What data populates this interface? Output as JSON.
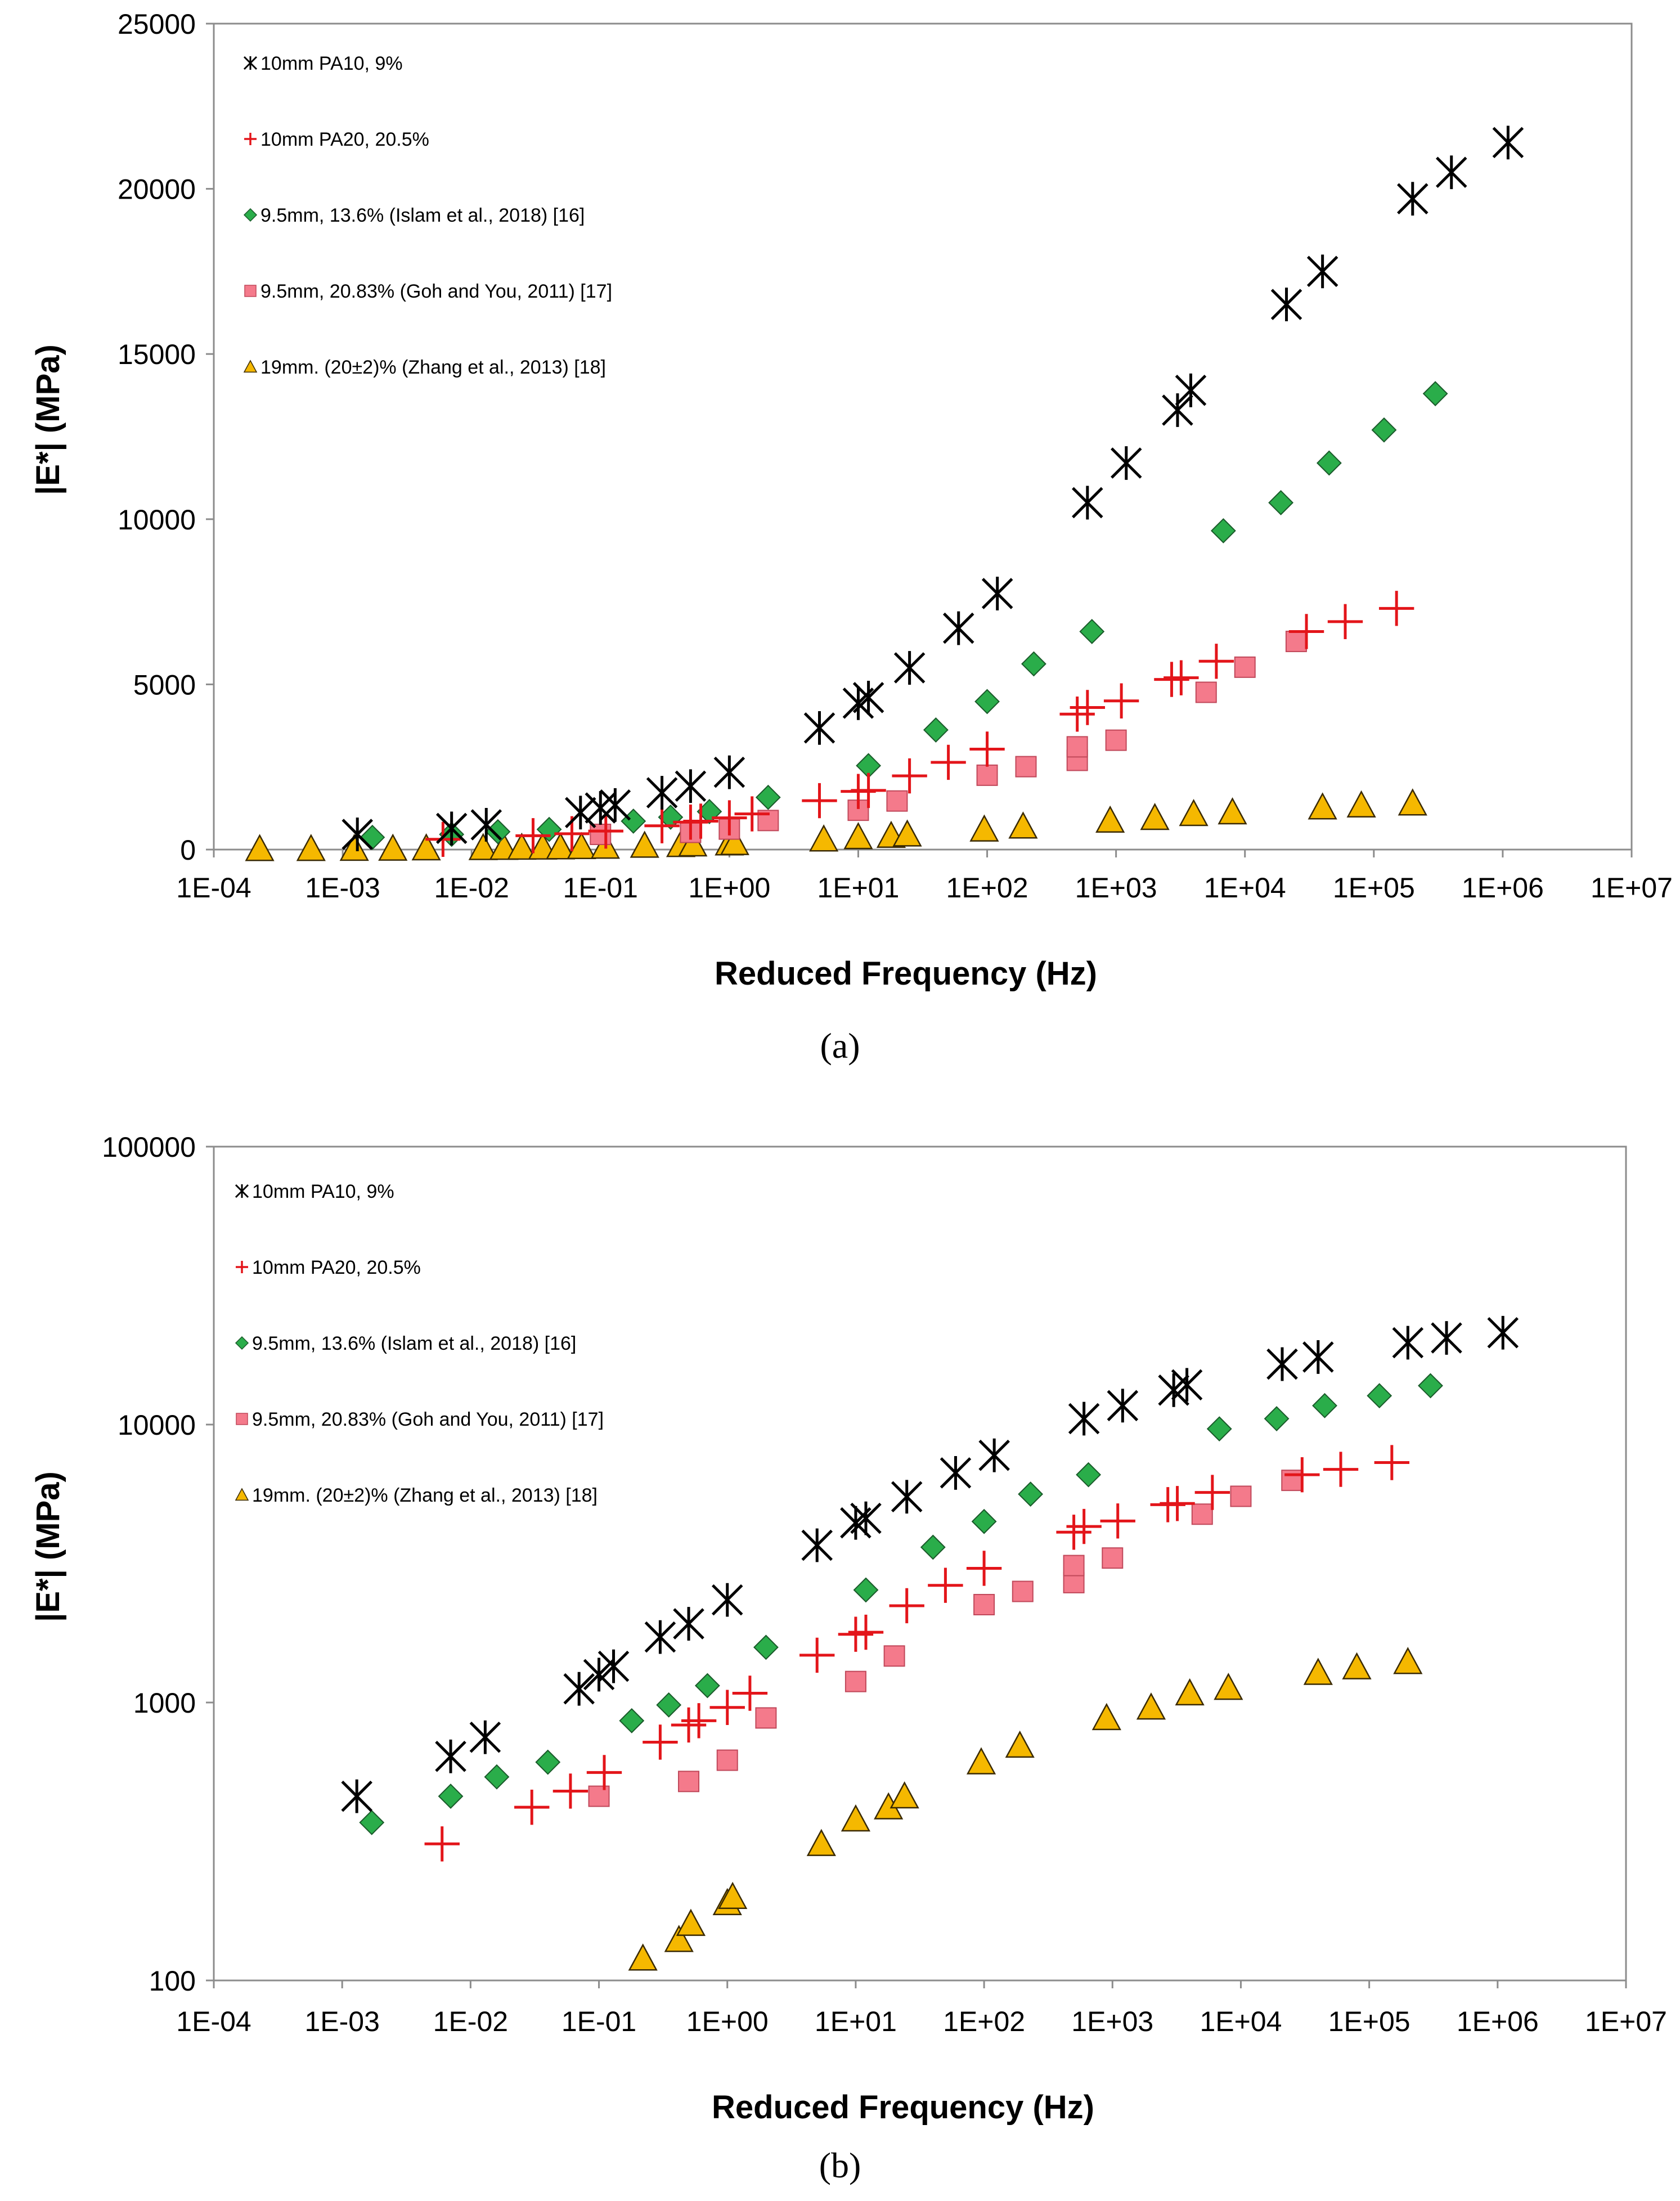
{
  "chart_data": [
    {
      "type": "scatter",
      "panel_label": "(a)",
      "xscale": "log",
      "yscale": "linear",
      "xlabel": "Reduced Frequency (Hz)",
      "ylabel": "|E*| (MPa)",
      "xlim": [
        0.0001,
        10000000
      ],
      "ylim": [
        0,
        25000
      ],
      "xticks": [
        0.0001,
        0.001,
        0.01,
        0.1,
        1,
        10,
        100,
        1000,
        10000,
        100000,
        1000000,
        10000000
      ],
      "xtick_labels": [
        "1E-04",
        "1E-03",
        "1E-02",
        "1E-01",
        "1E+00",
        "1E+01",
        "1E+02",
        "1E+03",
        "1E+04",
        "1E+05",
        "1E+06",
        "1E+07"
      ],
      "yticks": [
        0,
        5000,
        10000,
        15000,
        20000,
        25000
      ],
      "ytick_labels": [
        "0",
        "5000",
        "10000",
        "15000",
        "20000",
        "25000"
      ],
      "legend_position": "top-left",
      "series": [
        {
          "name": "10mm PA10, 9%",
          "marker": "asterisk",
          "color": "#000000",
          "x": [
            0.0013,
            0.007,
            0.013,
            0.07,
            0.1,
            0.13,
            0.3,
            0.5,
            1.0,
            5.0,
            10,
            12,
            25,
            60,
            120,
            600,
            1200,
            3000,
            3800,
            21000,
            40000,
            200000,
            400000,
            1100000
          ],
          "y": [
            460,
            640,
            750,
            1120,
            1260,
            1350,
            1720,
            1920,
            2340,
            3680,
            4430,
            4600,
            5500,
            6700,
            7750,
            10500,
            11700,
            13300,
            13900,
            16500,
            17500,
            19700,
            20500,
            21400
          ]
        },
        {
          "name": "10mm PA20, 20.5%",
          "marker": "plus",
          "color": "#e3151a",
          "x": [
            0.006,
            0.03,
            0.06,
            0.11,
            0.3,
            0.5,
            0.6,
            1.0,
            1.5,
            5.0,
            10,
            12,
            25,
            50,
            100,
            500,
            600,
            1100,
            2700,
            3200,
            6000,
            30000,
            60000,
            150000
          ],
          "y": [
            310,
            420,
            480,
            560,
            720,
            830,
            860,
            960,
            1080,
            1480,
            1760,
            1790,
            2230,
            2640,
            3040,
            4100,
            4300,
            4500,
            5150,
            5200,
            5700,
            6600,
            6900,
            7300
          ]
        },
        {
          "name": "9.5mm, 13.6% (Islam et al., 2018) [16]",
          "marker": "diamond",
          "color": "#2aad4a",
          "x": [
            0.0017,
            0.007,
            0.016,
            0.04,
            0.18,
            0.35,
            0.7,
            2.0,
            12,
            40,
            100,
            230,
            650,
            6800,
            19000,
            45000,
            120000,
            300000
          ],
          "y": [
            370,
            460,
            540,
            610,
            860,
            980,
            1150,
            1580,
            2540,
            3620,
            4480,
            5620,
            6600,
            9650,
            10500,
            11700,
            12700,
            13800
          ]
        },
        {
          "name": "9.5mm, 20.83% (Goh and You, 2011) [17]",
          "marker": "square",
          "color": "#f47a8b",
          "x": [
            0.1,
            0.5,
            1.0,
            2.0,
            10,
            20,
            100,
            200,
            500,
            500,
            1000,
            5000,
            10000,
            25000
          ],
          "y": [
            460,
            520,
            620,
            880,
            1190,
            1470,
            2250,
            2510,
            2700,
            3110,
            3310,
            4760,
            5520,
            6300
          ]
        },
        {
          "name": "19mm. (20±2)% (Zhang et al., 2013) [18]",
          "marker": "triangle",
          "color": "#f5b800",
          "x": [
            0.000227,
            0.000568,
            0.00123,
            0.00245,
            0.00445,
            0.0123,
            0.0178,
            0.0245,
            0.0356,
            0.0489,
            0.0712,
            0.109,
            0.22,
            0.42,
            0.52,
            1.0,
            1.1,
            5.4,
            10,
            18,
            24,
            95,
            190,
            900,
            2000,
            4000,
            8000,
            40000,
            80000,
            200000
          ],
          "y": [
            20,
            22,
            25,
            30,
            40,
            50,
            55,
            60,
            65,
            70,
            80,
            90,
            120,
            140,
            160,
            190,
            200,
            310,
            380,
            420,
            460,
            610,
            700,
            880,
            960,
            1080,
            1130,
            1280,
            1340,
            1400
          ]
        }
      ]
    },
    {
      "type": "scatter",
      "panel_label": "(b)",
      "xscale": "log",
      "yscale": "log",
      "xlabel": "Reduced Frequency (Hz)",
      "ylabel": "|E*| (MPa)",
      "xlim": [
        0.0001,
        10000000
      ],
      "ylim": [
        100,
        100000
      ],
      "xticks": [
        0.0001,
        0.001,
        0.01,
        0.1,
        1,
        10,
        100,
        1000,
        10000,
        100000,
        1000000,
        10000000
      ],
      "xtick_labels": [
        "1E-04",
        "1E-03",
        "1E-02",
        "1E-01",
        "1E+00",
        "1E+01",
        "1E+02",
        "1E+03",
        "1E+04",
        "1E+05",
        "1E+06",
        "1E+07"
      ],
      "yticks": [
        100,
        1000,
        10000,
        100000
      ],
      "ytick_labels": [
        "100",
        "1000",
        "10000",
        "100000"
      ],
      "legend_position": "top-left",
      "series": [
        {
          "name": "10mm PA10, 9%",
          "marker": "asterisk",
          "color": "#000000",
          "x": [
            0.0013,
            0.007,
            0.013,
            0.07,
            0.1,
            0.13,
            0.3,
            0.5,
            1.0,
            5.0,
            10,
            12,
            25,
            60,
            120,
            600,
            1200,
            3000,
            3800,
            21000,
            40000,
            200000,
            400000,
            1100000
          ],
          "y": [
            460,
            640,
            750,
            1120,
            1260,
            1350,
            1720,
            1920,
            2340,
            3680,
            4430,
            4600,
            5500,
            6700,
            7750,
            10500,
            11700,
            13300,
            13900,
            16500,
            17500,
            19700,
            20500,
            21400
          ]
        },
        {
          "name": "10mm PA20, 20.5%",
          "marker": "plus",
          "color": "#e3151a",
          "x": [
            0.006,
            0.03,
            0.06,
            0.11,
            0.3,
            0.5,
            0.6,
            1.0,
            1.5,
            5.0,
            10,
            12,
            25,
            50,
            100,
            500,
            600,
            1100,
            2700,
            3200,
            6000,
            30000,
            60000,
            150000
          ],
          "y": [
            310,
            420,
            480,
            560,
            720,
            830,
            860,
            960,
            1080,
            1480,
            1760,
            1790,
            2230,
            2640,
            3040,
            4100,
            4300,
            4500,
            5150,
            5200,
            5700,
            6600,
            6900,
            7300
          ]
        },
        {
          "name": "9.5mm, 13.6% (Islam et al., 2018) [16]",
          "marker": "diamond",
          "color": "#2aad4a",
          "x": [
            0.0017,
            0.007,
            0.016,
            0.04,
            0.18,
            0.35,
            0.7,
            2.0,
            12,
            40,
            100,
            230,
            650,
            6800,
            19000,
            45000,
            120000,
            300000
          ],
          "y": [
            370,
            460,
            540,
            610,
            860,
            980,
            1150,
            1580,
            2540,
            3620,
            4480,
            5620,
            6600,
            9650,
            10500,
            11700,
            12700,
            13800
          ]
        },
        {
          "name": "9.5mm, 20.83% (Goh and You, 2011) [17]",
          "marker": "square",
          "color": "#f47a8b",
          "x": [
            0.1,
            0.5,
            1.0,
            2.0,
            10,
            20,
            100,
            200,
            500,
            500,
            1000,
            5000,
            10000,
            25000
          ],
          "y": [
            460,
            520,
            620,
            880,
            1190,
            1470,
            2250,
            2510,
            2700,
            3110,
            3310,
            4760,
            5520,
            6300
          ]
        },
        {
          "name": "19mm. (20±2)% (Zhang et al., 2013) [18]",
          "marker": "triangle",
          "color": "#f5b800",
          "x": [
            0.22,
            0.42,
            0.52,
            1.0,
            1.1,
            5.4,
            10,
            18,
            24,
            95,
            190,
            900,
            2000,
            4000,
            8000,
            40000,
            80000,
            200000
          ],
          "y": [
            120,
            140,
            160,
            190,
            200,
            310,
            380,
            420,
            460,
            610,
            700,
            880,
            960,
            1080,
            1130,
            1280,
            1340,
            1400
          ]
        }
      ]
    }
  ]
}
